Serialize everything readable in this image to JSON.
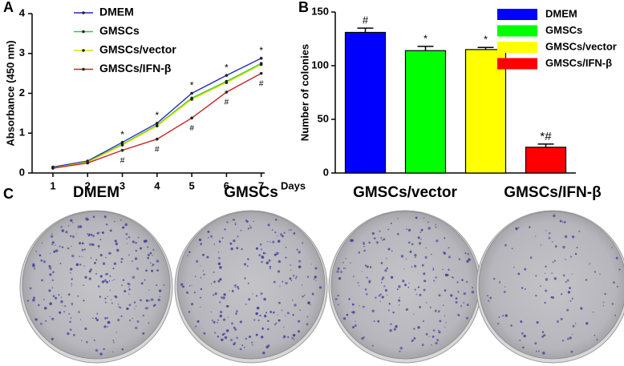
{
  "chart_data": [
    {
      "type": "line",
      "panel_label": "A",
      "ylabel": "Absorbance (450 nm)",
      "xlabel": "Days",
      "x": [
        1,
        2,
        3,
        4,
        5,
        6,
        7
      ],
      "xlim": [
        0.4,
        7.1
      ],
      "xticks": [
        1,
        2,
        3,
        4,
        5,
        6,
        7
      ],
      "ylim": [
        0,
        4
      ],
      "yticks": [
        0,
        1,
        2,
        3,
        4
      ],
      "legend": "top-left",
      "series": [
        {
          "name": "DMEM",
          "color": "#2a2ab8",
          "values": [
            0.15,
            0.3,
            0.77,
            1.25,
            2.0,
            2.45,
            2.88
          ]
        },
        {
          "name": "GMSCs",
          "color": "#33cc33",
          "values": [
            0.13,
            0.28,
            0.72,
            1.2,
            1.88,
            2.3,
            2.75
          ]
        },
        {
          "name": "GMSCs/vector",
          "color": "#e0e000",
          "values": [
            0.12,
            0.27,
            0.7,
            1.18,
            1.85,
            2.27,
            2.72
          ]
        },
        {
          "name": "GMSCs/IFN-β",
          "color": "#cc2222",
          "values": [
            0.12,
            0.25,
            0.57,
            0.85,
            1.38,
            2.03,
            2.5
          ]
        }
      ],
      "significance_above": [
        null,
        null,
        "*",
        "*",
        "*",
        "*",
        "*"
      ],
      "significance_below": [
        null,
        null,
        "#",
        "#",
        "#",
        "#",
        "#"
      ]
    },
    {
      "type": "bar",
      "panel_label": "B",
      "ylabel": "Number of colonies",
      "categories": [
        "DMEM",
        "GMSCs",
        "GMSCs/vector",
        "GMSCs/IFN-β"
      ],
      "values": [
        131,
        114,
        115,
        24
      ],
      "errors": [
        4,
        4,
        2,
        3
      ],
      "colors": [
        "#0000ff",
        "#00ff00",
        "#ffff00",
        "#ff0000"
      ],
      "significance": [
        "#",
        "*",
        "*",
        "*#"
      ],
      "ylim": [
        0,
        150
      ],
      "yticks": [
        0,
        50,
        100,
        150
      ],
      "legend": "top-right"
    }
  ],
  "plates": {
    "panel_label": "C",
    "labels": [
      "DMEM",
      "GMSCs",
      "GMSCs/vector",
      "GMSCs/IFN-β"
    ]
  }
}
